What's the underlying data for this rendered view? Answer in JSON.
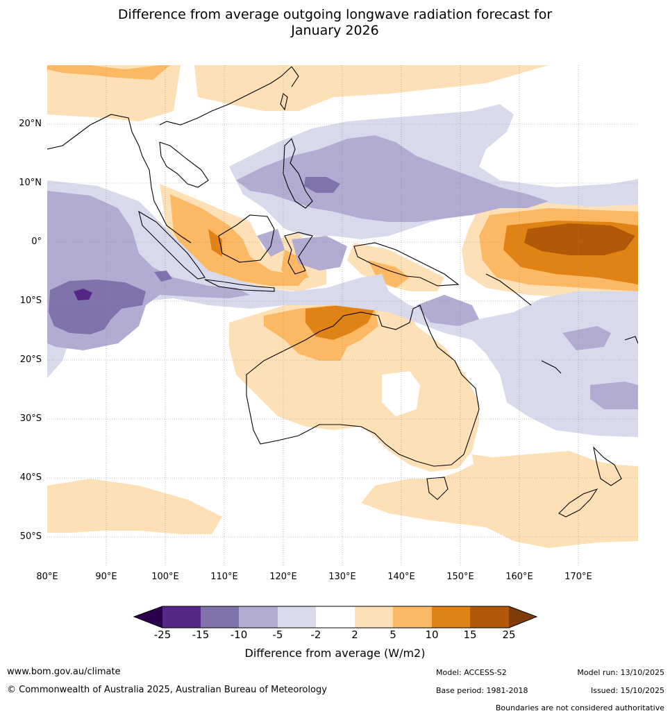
{
  "title": {
    "line1": "Difference from average outgoing longwave radiation forecast for",
    "line2": "January 2026"
  },
  "map": {
    "lat_labels": [
      "20°N",
      "10°N",
      "0°",
      "10°S",
      "20°S",
      "30°S",
      "40°S",
      "50°S"
    ],
    "lon_labels": [
      "80°E",
      "90°E",
      "100°E",
      "110°E",
      "120°E",
      "130°E",
      "140°E",
      "150°E",
      "160°E",
      "170°E"
    ],
    "extent": {
      "lon_min": 80,
      "lon_max": 180,
      "lat_min": -55,
      "lat_max": 30
    }
  },
  "colorbar": {
    "label": "Difference from average (W/m2)",
    "ticks": [
      "-25",
      "-15",
      "-10",
      "-5",
      "-2",
      "2",
      "5",
      "10",
      "15",
      "25"
    ],
    "under_color": "#2d004b",
    "over_color": "#7f3b08",
    "colors": [
      "#542788",
      "#8073ac",
      "#b2abd2",
      "#d8daeb",
      "#ffffff",
      "#fee0b6",
      "#fdb863",
      "#e08214",
      "#b35806"
    ]
  },
  "footer": {
    "website": "www.bom.gov.au/climate",
    "copyright": "© Commonwealth of Australia 2025, Australian Bureau of Meteorology",
    "model": "Model: ACCESS-S2",
    "base_period": "Base period: 1981-2018",
    "model_run": "Model run: 13/10/2025",
    "issued": "Issued: 15/10/2025",
    "disclaimer": "Boundaries are not considered authoritative"
  }
}
